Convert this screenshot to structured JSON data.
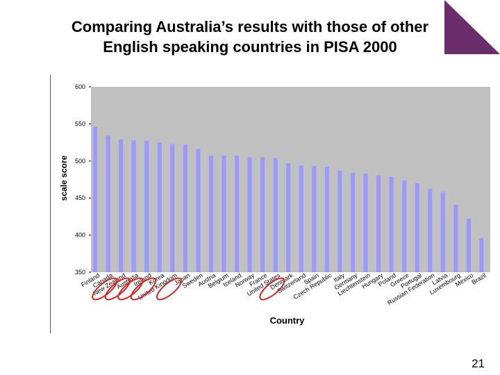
{
  "slide": {
    "title_line1": "Comparing Australia’s results with those of other",
    "title_line2": "English speaking countries in PISA 2000",
    "page_number": "21",
    "accent_color": "#6b2d6b"
  },
  "chart_data": {
    "type": "bar",
    "xlabel": "Country",
    "ylabel": "scale score",
    "ylim": [
      350,
      600
    ],
    "yticks": [
      350,
      400,
      450,
      500,
      550,
      600
    ],
    "grid": false,
    "bar_color": "#9999ff",
    "plot_background": "#c0c0c0",
    "categories": [
      "Finland",
      "Canada",
      "New Zealand",
      "Australia",
      "Ireland",
      "Korea",
      "United Kingdom",
      "Japan",
      "Sweden",
      "Austria",
      "Belgium",
      "Iceland",
      "Norway",
      "France",
      "United States",
      "Denmark",
      "Switzerland",
      "Spain",
      "Czech Republic",
      "Italy",
      "Germany",
      "Liechtenstein",
      "Hungary",
      "Poland",
      "Greece",
      "Portugal",
      "Russian Federation",
      "Latvia",
      "Luxembourg",
      "Mexico",
      "Brazil"
    ],
    "values": [
      546,
      534,
      529,
      528,
      527,
      525,
      523,
      522,
      516,
      507,
      507,
      507,
      505,
      505,
      504,
      497,
      494,
      493,
      492,
      487,
      484,
      483,
      480,
      479,
      474,
      470,
      462,
      458,
      441,
      422,
      396
    ],
    "highlighted": [
      "Canada",
      "New Zealand",
      "Australia",
      "Ireland",
      "United Kingdom",
      "United States"
    ],
    "highlight_color": "#e02020"
  }
}
